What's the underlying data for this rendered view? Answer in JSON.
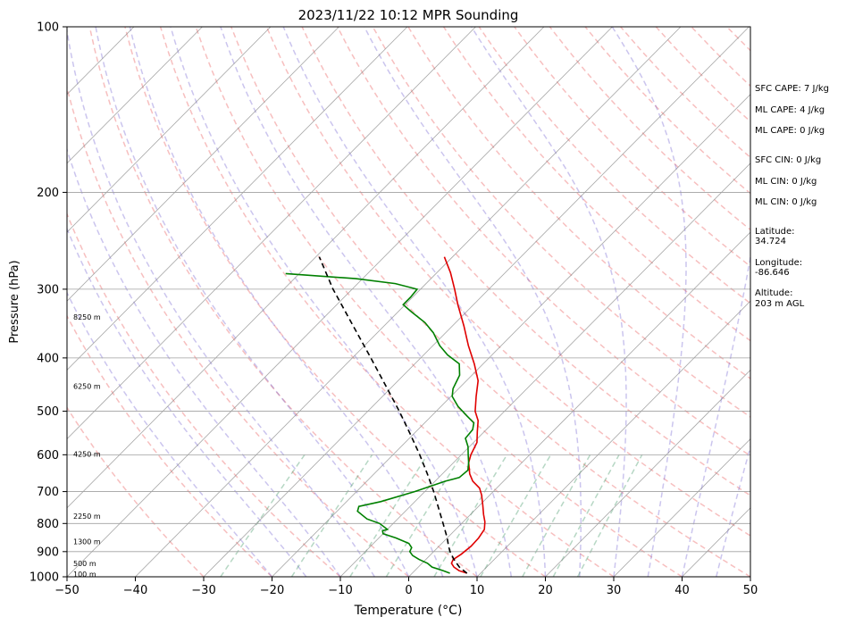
{
  "chart_data": {
    "type": "line",
    "title": "2023/11/22 10:12 MPR Sounding",
    "xlabel": "Temperature (°C)",
    "ylabel": "Pressure (hPa)",
    "xlim": [
      -50,
      50
    ],
    "ylim": [
      1000,
      100
    ],
    "yscale": "log",
    "skew": true,
    "grid": true,
    "x_ticks": [
      -50,
      -40,
      -30,
      -20,
      -10,
      0,
      10,
      20,
      30,
      40,
      50
    ],
    "y_ticks": [
      1000,
      900,
      800,
      700,
      600,
      500,
      400,
      300,
      200,
      100
    ],
    "series": [
      {
        "color": "#e00000",
        "points": [
          {
            "p": 985,
            "t": 8.0
          },
          {
            "p": 975,
            "t": 6.5
          },
          {
            "p": 960,
            "t": 5.2
          },
          {
            "p": 945,
            "t": 4.3
          },
          {
            "p": 930,
            "t": 4.0
          },
          {
            "p": 910,
            "t": 4.4
          },
          {
            "p": 880,
            "t": 4.7
          },
          {
            "p": 850,
            "t": 4.6
          },
          {
            "p": 820,
            "t": 4.2
          },
          {
            "p": 795,
            "t": 3.2
          },
          {
            "p": 770,
            "t": 1.9
          },
          {
            "p": 740,
            "t": 0.4
          },
          {
            "p": 710,
            "t": -1.2
          },
          {
            "p": 690,
            "t": -2.5
          },
          {
            "p": 670,
            "t": -4.5
          },
          {
            "p": 650,
            "t": -6.0
          },
          {
            "p": 620,
            "t": -7.8
          },
          {
            "p": 600,
            "t": -8.6
          },
          {
            "p": 570,
            "t": -9.5
          },
          {
            "p": 545,
            "t": -11.0
          },
          {
            "p": 520,
            "t": -12.5
          },
          {
            "p": 500,
            "t": -14.3
          },
          {
            "p": 470,
            "t": -16.3
          },
          {
            "p": 440,
            "t": -18.3
          },
          {
            "p": 410,
            "t": -21.3
          },
          {
            "p": 380,
            "t": -24.8
          },
          {
            "p": 350,
            "t": -28.3
          },
          {
            "p": 320,
            "t": -32.3
          },
          {
            "p": 300,
            "t": -35.0
          },
          {
            "p": 280,
            "t": -38.0
          },
          {
            "p": 262,
            "t": -41.2
          }
        ]
      },
      {
        "color": "#008000",
        "points": [
          {
            "p": 985,
            "t": 5.5
          },
          {
            "p": 975,
            "t": 4.2
          },
          {
            "p": 960,
            "t": 2.0
          },
          {
            "p": 945,
            "t": 0.8
          },
          {
            "p": 930,
            "t": -1.0
          },
          {
            "p": 915,
            "t": -2.5
          },
          {
            "p": 900,
            "t": -3.5
          },
          {
            "p": 885,
            "t": -3.8
          },
          {
            "p": 870,
            "t": -4.8
          },
          {
            "p": 850,
            "t": -7.5
          },
          {
            "p": 835,
            "t": -10.0
          },
          {
            "p": 825,
            "t": -10.5
          },
          {
            "p": 820,
            "t": -10.0
          },
          {
            "p": 800,
            "t": -12.0
          },
          {
            "p": 785,
            "t": -14.5
          },
          {
            "p": 760,
            "t": -17.0
          },
          {
            "p": 745,
            "t": -17.5
          },
          {
            "p": 730,
            "t": -15.0
          },
          {
            "p": 700,
            "t": -11.5
          },
          {
            "p": 670,
            "t": -8.5
          },
          {
            "p": 660,
            "t": -7.0
          },
          {
            "p": 640,
            "t": -6.8
          },
          {
            "p": 620,
            "t": -7.8
          },
          {
            "p": 600,
            "t": -9.0
          },
          {
            "p": 580,
            "t": -10.2
          },
          {
            "p": 560,
            "t": -11.8
          },
          {
            "p": 540,
            "t": -12.0
          },
          {
            "p": 525,
            "t": -12.8
          },
          {
            "p": 510,
            "t": -14.8
          },
          {
            "p": 490,
            "t": -17.5
          },
          {
            "p": 470,
            "t": -19.8
          },
          {
            "p": 455,
            "t": -20.8
          },
          {
            "p": 430,
            "t": -21.8
          },
          {
            "p": 410,
            "t": -23.5
          },
          {
            "p": 395,
            "t": -26.5
          },
          {
            "p": 380,
            "t": -29.0
          },
          {
            "p": 360,
            "t": -31.8
          },
          {
            "p": 345,
            "t": -34.5
          },
          {
            "p": 330,
            "t": -38.0
          },
          {
            "p": 320,
            "t": -40.3
          },
          {
            "p": 310,
            "t": -40.3
          },
          {
            "p": 300,
            "t": -40.5
          },
          {
            "p": 293,
            "t": -44.5
          },
          {
            "p": 287,
            "t": -51.0
          },
          {
            "p": 281,
            "t": -62.0
          }
        ]
      },
      {
        "color": "#000000",
        "dashed": true,
        "points": [
          {
            "p": 985,
            "t": 8.0
          },
          {
            "p": 960,
            "t": 6.0
          },
          {
            "p": 930,
            "t": 4.1
          },
          {
            "p": 900,
            "t": 2.4
          },
          {
            "p": 880,
            "t": 1.4
          },
          {
            "p": 850,
            "t": 0.0
          },
          {
            "p": 800,
            "t": -2.7
          },
          {
            "p": 750,
            "t": -5.6
          },
          {
            "p": 700,
            "t": -8.7
          },
          {
            "p": 650,
            "t": -12.2
          },
          {
            "p": 600,
            "t": -16.1
          },
          {
            "p": 550,
            "t": -20.5
          },
          {
            "p": 500,
            "t": -25.4
          },
          {
            "p": 450,
            "t": -31.0
          },
          {
            "p": 400,
            "t": -37.3
          },
          {
            "p": 350,
            "t": -44.5
          },
          {
            "p": 300,
            "t": -52.8
          },
          {
            "p": 262,
            "t": -59.5
          }
        ]
      }
    ],
    "height_labels": [
      {
        "label": "100 m",
        "p": 988
      },
      {
        "label": "500 m",
        "p": 945
      },
      {
        "label": "1300 m",
        "p": 862
      },
      {
        "label": "2250 m",
        "p": 775
      },
      {
        "label": "4250 m",
        "p": 598
      },
      {
        "label": "6250 m",
        "p": 450
      },
      {
        "label": "8250 m",
        "p": 337
      }
    ],
    "annotations": [
      "SFC CAPE: 7 J/kg",
      "ML CAPE: 4 J/kg",
      "ML CAPE: 0 J/kg",
      "SFC CIN: 0 J/kg",
      "ML CIN: 0 J/kg",
      "ML CIN: 0 J/kg",
      "Latitude:",
      "34.724",
      "Longitude:",
      "-86.646",
      "Altitude:",
      "203 m AGL"
    ],
    "colors": {
      "temperature": "#e00000",
      "dewpoint": "#008000",
      "parcel": "#000000",
      "dry_adiabats": "#f08080",
      "moist_adiabats": "#6a5acd",
      "mixing_ratio": "#2e8b57",
      "isotherms": "#808080",
      "isobars": "#a0a0a0"
    }
  }
}
